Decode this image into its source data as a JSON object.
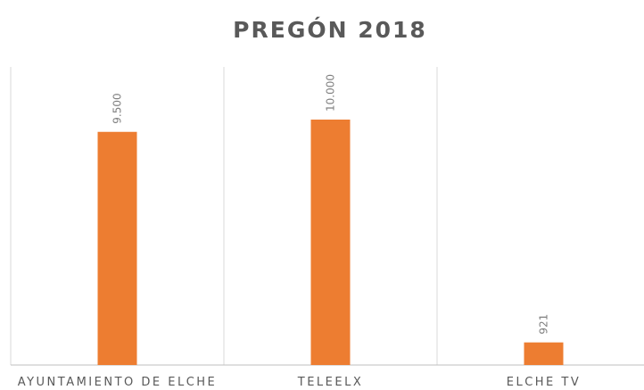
{
  "chart_data": {
    "type": "bar",
    "title": "PREGÓN 2018",
    "categories": [
      "AYUNTAMIENTO DE ELCHE",
      "TELEELX",
      "ELCHE TV"
    ],
    "values": [
      9500,
      10000,
      921
    ],
    "value_labels": [
      "9.500",
      "10.000",
      "921"
    ],
    "color": "#ed7d31"
  }
}
